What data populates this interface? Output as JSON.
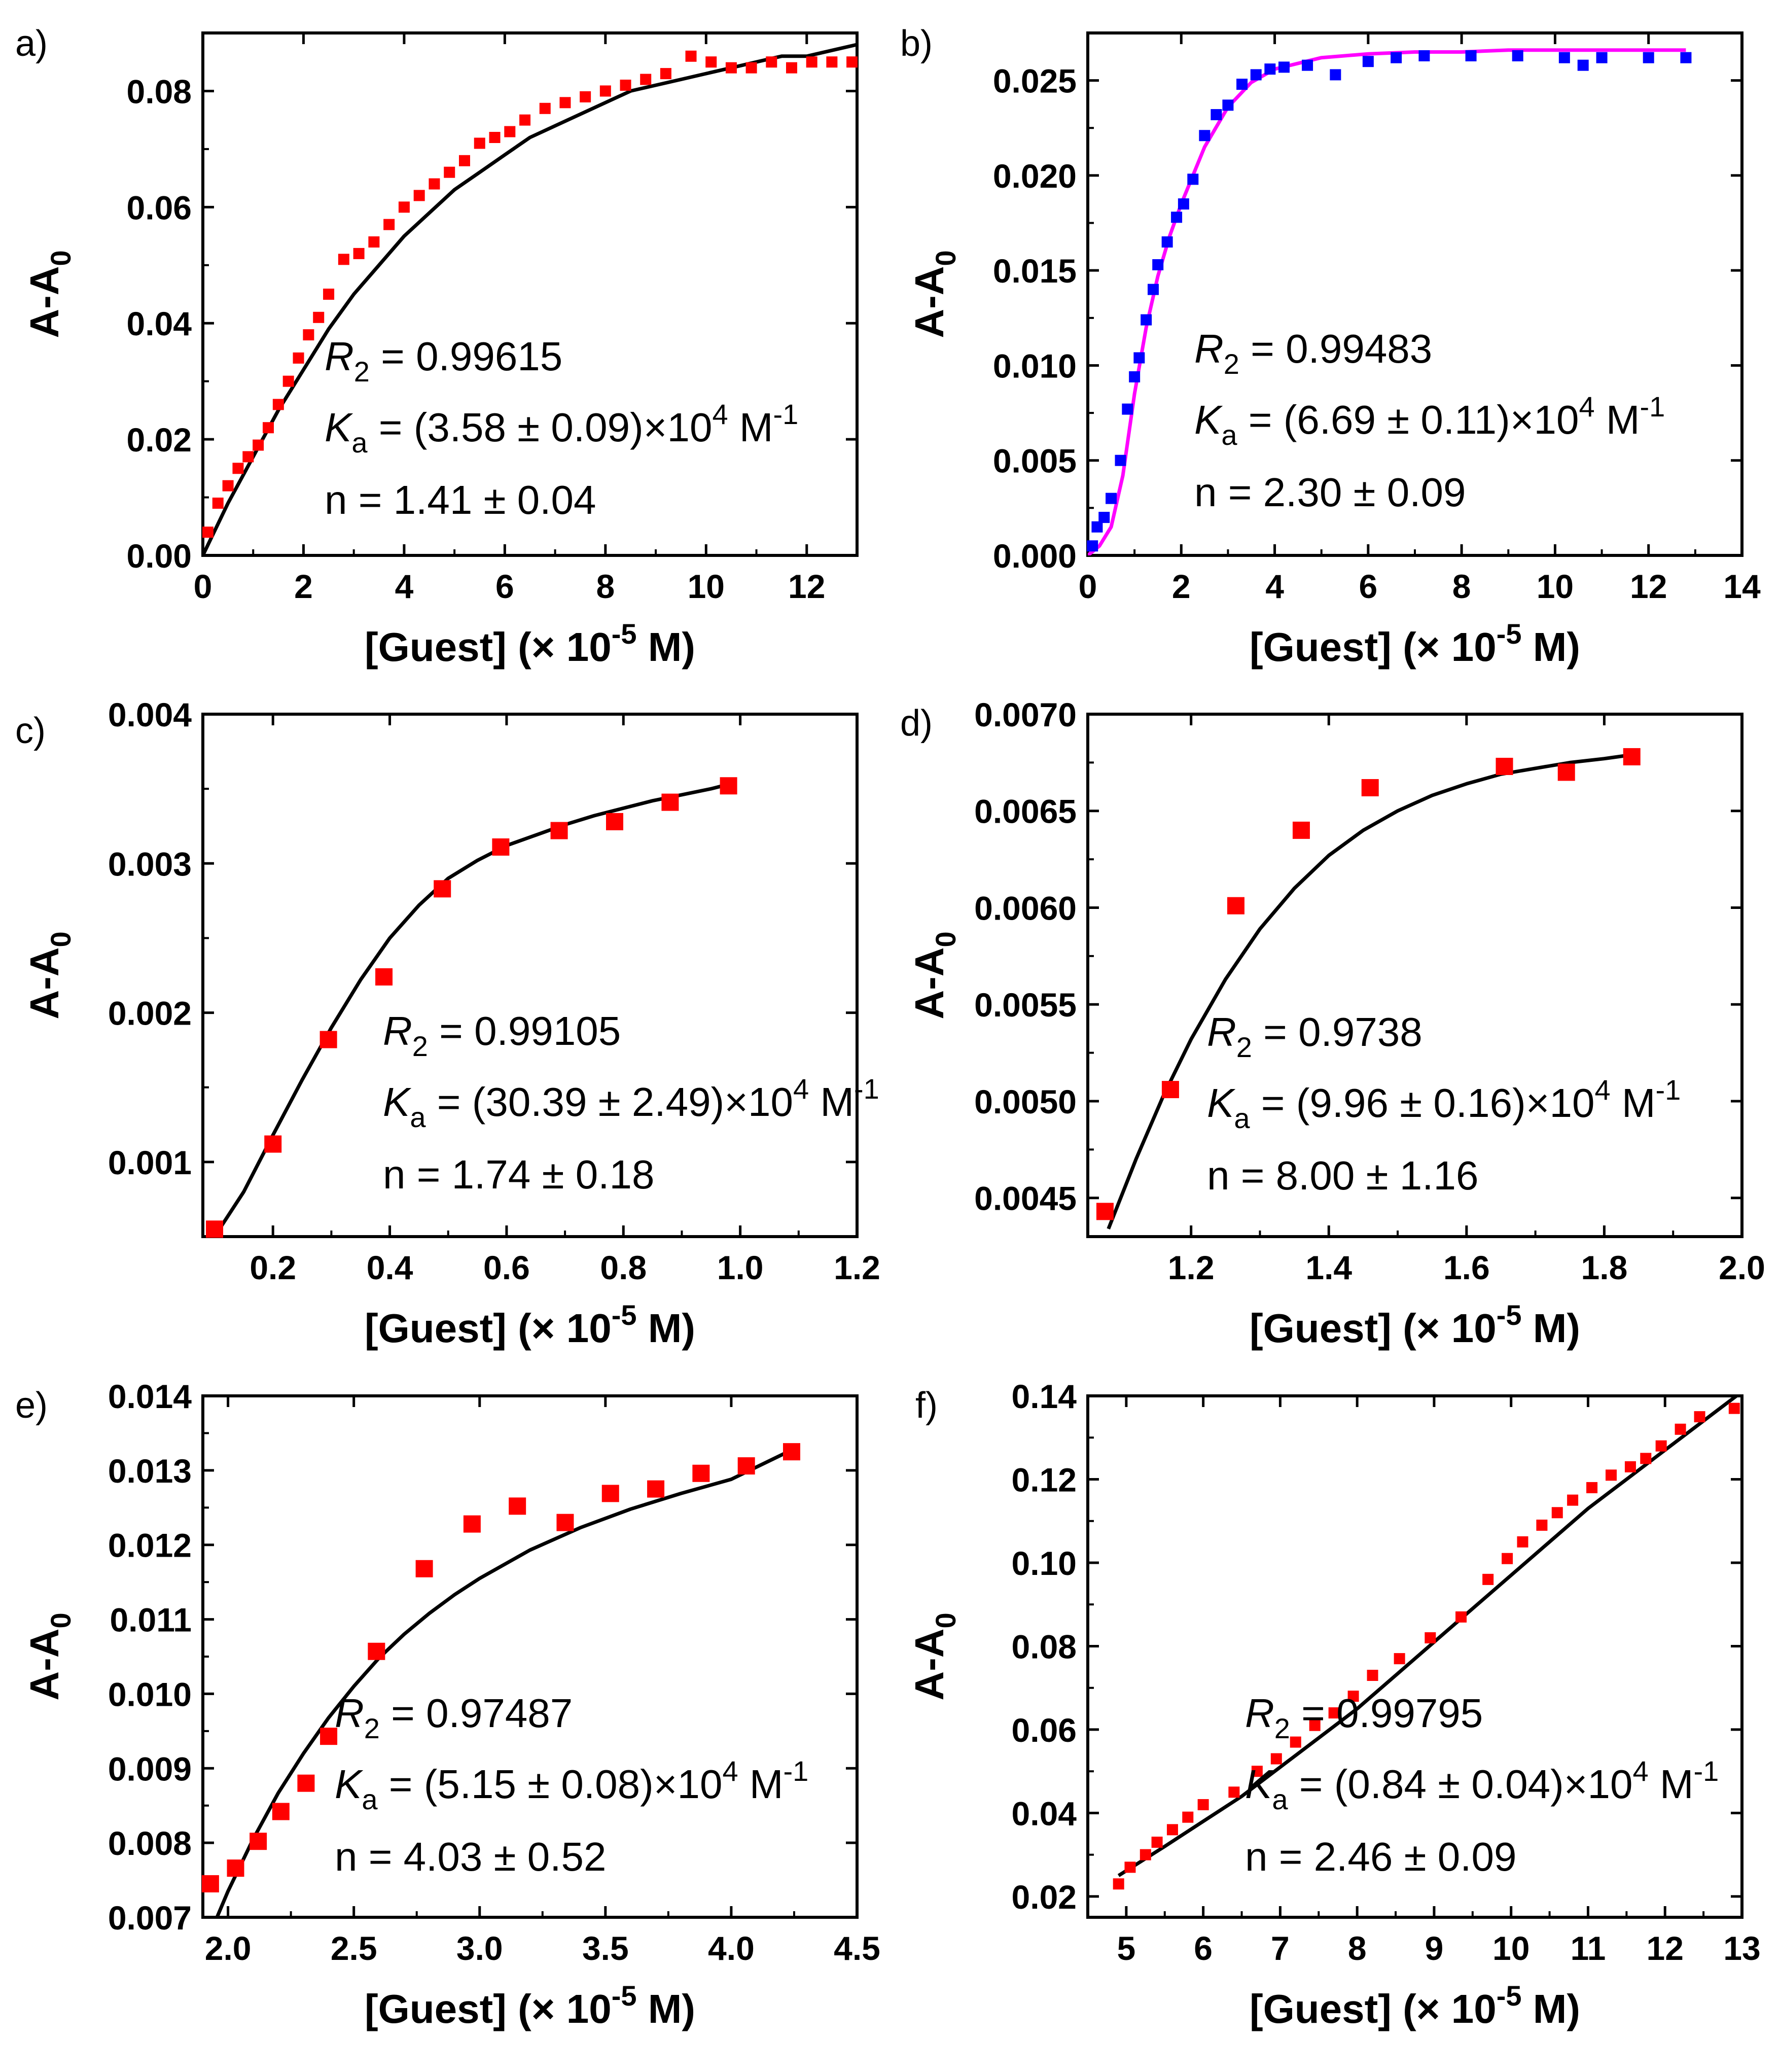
{
  "figure": {
    "background": "#ffffff",
    "frame_color": "#000000"
  },
  "chart_data": [
    {
      "id": "a",
      "panel_label": "a)",
      "type": "scatter",
      "xlabel": "[Guest] (× 10",
      "x_exp": "-5",
      "xlabel_tail": " M)",
      "ylabel": "A-A",
      "ylabel_sub": "0",
      "xlim": [
        0,
        13
      ],
      "ylim": [
        0,
        0.09
      ],
      "xticks": [
        0,
        2,
        4,
        6,
        8,
        10,
        12
      ],
      "xtick_labels": [
        "0",
        "2",
        "4",
        "6",
        "8",
        "10",
        "12"
      ],
      "yticks": [
        0,
        0.02,
        0.04,
        0.06,
        0.08
      ],
      "ytick_labels": [
        "0.00",
        "0.02",
        "0.04",
        "0.06",
        "0.08"
      ],
      "marker_color": "#ff0000",
      "fit_color": "#000000",
      "series": [
        {
          "name": "data",
          "x": [
            0.1,
            0.3,
            0.5,
            0.7,
            0.9,
            1.1,
            1.3,
            1.5,
            1.7,
            1.9,
            2.1,
            2.3,
            2.5,
            2.8,
            3.1,
            3.4,
            3.7,
            4.0,
            4.3,
            4.6,
            4.9,
            5.2,
            5.5,
            5.8,
            6.1,
            6.4,
            6.8,
            7.2,
            7.6,
            8.0,
            8.4,
            8.8,
            9.2,
            9.7,
            10.1,
            10.5,
            10.9,
            11.3,
            11.7,
            12.1,
            12.5,
            12.9
          ],
          "y": [
            0.004,
            0.009,
            0.012,
            0.015,
            0.017,
            0.019,
            0.022,
            0.026,
            0.03,
            0.034,
            0.038,
            0.041,
            0.045,
            0.051,
            0.052,
            0.054,
            0.057,
            0.06,
            0.062,
            0.064,
            0.066,
            0.068,
            0.071,
            0.072,
            0.073,
            0.075,
            0.077,
            0.078,
            0.079,
            0.08,
            0.081,
            0.082,
            0.083,
            0.086,
            0.085,
            0.084,
            0.084,
            0.085,
            0.084,
            0.085,
            0.085,
            0.085
          ]
        },
        {
          "name": "fit",
          "x": [
            0,
            0.5,
            1,
            1.5,
            2,
            2.5,
            3,
            3.5,
            4,
            4.5,
            5,
            5.5,
            6,
            6.5,
            7,
            7.5,
            8,
            8.5,
            9,
            9.5,
            10,
            10.5,
            11,
            11.5,
            12,
            12.5,
            13
          ],
          "y": [
            0,
            0.009,
            0.017,
            0.025,
            0.032,
            0.039,
            0.045,
            0.05,
            0.055,
            0.059,
            0.063,
            0.066,
            0.069,
            0.072,
            0.074,
            0.076,
            0.078,
            0.08,
            0.081,
            0.082,
            0.083,
            0.084,
            0.085,
            0.086,
            0.086,
            0.087,
            0.088
          ]
        }
      ],
      "stats": {
        "r2_label": "R",
        "r2_sub": "2",
        "r2_value": " = 0.99615",
        "ka_label": "K",
        "ka_sub": "a",
        "ka_value": " = (3.58 ± 0.09)×10",
        "ka_exp": "4",
        "ka_unit": " M",
        "ka_unit_exp": "-1",
        "n_text": "n = 1.41 ± 0.04"
      }
    },
    {
      "id": "b",
      "panel_label": "b)",
      "type": "scatter",
      "xlabel": "[Guest] (× 10",
      "x_exp": "-5",
      "xlabel_tail": " M)",
      "ylabel": "A-A",
      "ylabel_sub": "0",
      "xlim": [
        0,
        14
      ],
      "ylim": [
        0,
        0.0275
      ],
      "xticks": [
        0,
        2,
        4,
        6,
        8,
        10,
        12,
        14
      ],
      "xtick_labels": [
        "0",
        "2",
        "4",
        "6",
        "8",
        "10",
        "12",
        "14"
      ],
      "yticks": [
        0,
        0.005,
        0.01,
        0.015,
        0.02,
        0.025
      ],
      "ytick_labels": [
        "0.000",
        "0.005",
        "0.010",
        "0.015",
        "0.020",
        "0.025"
      ],
      "marker_color": "#0000ff",
      "fit_color": "#ff00ff",
      "series": [
        {
          "name": "data",
          "x": [
            0.1,
            0.2,
            0.35,
            0.5,
            0.7,
            0.85,
            1.0,
            1.1,
            1.25,
            1.4,
            1.5,
            1.7,
            1.9,
            2.05,
            2.25,
            2.5,
            2.75,
            3.0,
            3.3,
            3.6,
            3.9,
            4.2,
            4.7,
            5.3,
            6.0,
            6.6,
            7.2,
            8.2,
            9.2,
            10.2,
            10.6,
            11.0,
            12.0,
            12.8
          ],
          "y": [
            0.0005,
            0.0015,
            0.002,
            0.003,
            0.005,
            0.0077,
            0.0094,
            0.0104,
            0.0124,
            0.014,
            0.0153,
            0.0165,
            0.0178,
            0.0185,
            0.0198,
            0.0221,
            0.0232,
            0.0237,
            0.0248,
            0.0253,
            0.0256,
            0.0257,
            0.0258,
            0.0253,
            0.026,
            0.0262,
            0.0263,
            0.0263,
            0.0263,
            0.0262,
            0.0258,
            0.0262,
            0.0262,
            0.0262
          ]
        },
        {
          "name": "fit",
          "x": [
            0,
            0.25,
            0.5,
            0.75,
            1,
            1.25,
            1.5,
            1.75,
            2,
            2.5,
            3,
            3.5,
            4,
            5,
            6,
            7,
            8,
            9,
            10,
            11,
            12,
            12.8
          ],
          "y": [
            0,
            0.0005,
            0.0015,
            0.0042,
            0.0085,
            0.012,
            0.0147,
            0.0168,
            0.0185,
            0.0215,
            0.0236,
            0.0249,
            0.0256,
            0.0262,
            0.0264,
            0.0265,
            0.0265,
            0.0266,
            0.0266,
            0.0266,
            0.0266,
            0.0266
          ]
        }
      ],
      "stats": {
        "r2_label": "R",
        "r2_sub": "2",
        "r2_value": " = 0.99483",
        "ka_label": "K",
        "ka_sub": "a",
        "ka_value": " = (6.69 ± 0.11)×10",
        "ka_exp": "4",
        "ka_unit": " M",
        "ka_unit_exp": "-1",
        "n_text": "n = 2.30 ± 0.09"
      }
    },
    {
      "id": "c",
      "panel_label": "c)",
      "type": "scatter",
      "xlabel": "[Guest] (× 10",
      "x_exp": "-5",
      "xlabel_tail": " M)",
      "ylabel": "A-A",
      "ylabel_sub": "0",
      "xlim": [
        0.08,
        1.2
      ],
      "ylim": [
        0.0005,
        0.004
      ],
      "xticks": [
        0.2,
        0.4,
        0.6,
        0.8,
        1.0,
        1.2
      ],
      "xtick_labels": [
        "0.2",
        "0.4",
        "0.6",
        "0.8",
        "1.0",
        "1.2"
      ],
      "yticks": [
        0.001,
        0.002,
        0.003,
        0.004
      ],
      "ytick_labels": [
        "0.001",
        "0.002",
        "0.003",
        "0.004"
      ],
      "marker_color": "#ff0000",
      "fit_color": "#000000",
      "series": [
        {
          "name": "data",
          "x": [
            0.1,
            0.2,
            0.295,
            0.39,
            0.49,
            0.59,
            0.69,
            0.785,
            0.88,
            0.98
          ],
          "y": [
            0.00055,
            0.00112,
            0.00182,
            0.00224,
            0.00283,
            0.00311,
            0.00322,
            0.00328,
            0.00341,
            0.00352
          ]
        },
        {
          "name": "fit",
          "x": [
            0.1,
            0.15,
            0.2,
            0.25,
            0.3,
            0.35,
            0.4,
            0.45,
            0.5,
            0.55,
            0.6,
            0.65,
            0.7,
            0.75,
            0.8,
            0.85,
            0.9,
            0.95,
            0.98
          ],
          "y": [
            0.0005,
            0.0008,
            0.00118,
            0.00155,
            0.0019,
            0.00222,
            0.0025,
            0.00272,
            0.0029,
            0.00302,
            0.00312,
            0.00319,
            0.00326,
            0.00332,
            0.00337,
            0.00342,
            0.00346,
            0.0035,
            0.00353
          ]
        }
      ],
      "stats": {
        "r2_label": "R",
        "r2_sub": "2",
        "r2_value": " = 0.99105",
        "ka_label": "K",
        "ka_sub": "a",
        "ka_value": " = (30.39 ± 2.49)×10",
        "ka_exp": "4",
        "ka_unit": " M",
        "ka_unit_exp": "-1",
        "n_text": "n = 1.74 ± 0.18"
      }
    },
    {
      "id": "d",
      "panel_label": "d)",
      "type": "scatter",
      "xlabel": "[Guest] (× 10",
      "x_exp": "-5",
      "xlabel_tail": " M)",
      "ylabel": "A-A",
      "ylabel_sub": "0",
      "xlim": [
        1.05,
        2.0
      ],
      "ylim": [
        0.0043,
        0.007
      ],
      "xticks": [
        1.2,
        1.4,
        1.6,
        1.8,
        2.0
      ],
      "xtick_labels": [
        "1.2",
        "1.4",
        "1.6",
        "1.8",
        "2.0"
      ],
      "yticks": [
        0.0045,
        0.005,
        0.0055,
        0.006,
        0.0065,
        0.007
      ],
      "ytick_labels": [
        "0.0045",
        "0.0050",
        "0.0055",
        "0.0060",
        "0.0065",
        "0.0070"
      ],
      "marker_color": "#ff0000",
      "fit_color": "#000000",
      "series": [
        {
          "name": "data",
          "x": [
            1.075,
            1.17,
            1.265,
            1.36,
            1.46,
            1.655,
            1.745,
            1.84
          ],
          "y": [
            0.00443,
            0.00506,
            0.00601,
            0.0064,
            0.00662,
            0.00673,
            0.0067,
            0.00678
          ]
        },
        {
          "name": "fit",
          "x": [
            1.08,
            1.12,
            1.16,
            1.2,
            1.25,
            1.3,
            1.35,
            1.4,
            1.45,
            1.5,
            1.55,
            1.6,
            1.65,
            1.7,
            1.75,
            1.8,
            1.84
          ],
          "y": [
            0.00434,
            0.0047,
            0.00503,
            0.00532,
            0.00563,
            0.00589,
            0.0061,
            0.00627,
            0.0064,
            0.0065,
            0.00658,
            0.00664,
            0.00669,
            0.00672,
            0.00675,
            0.00677,
            0.00679
          ]
        }
      ],
      "stats": {
        "r2_label": "R",
        "r2_sub": "2",
        "r2_value": " = 0.9738",
        "ka_label": "K",
        "ka_sub": "a",
        "ka_value": " = (9.96 ± 0.16)×10",
        "ka_exp": "4",
        "ka_unit": " M",
        "ka_unit_exp": "-1",
        "n_text": "n = 8.00 ± 1.16"
      }
    },
    {
      "id": "e",
      "panel_label": "e)",
      "type": "scatter",
      "xlabel": "[Guest] (× 10",
      "x_exp": "-5",
      "xlabel_tail": " M)",
      "ylabel": "A-A",
      "ylabel_sub": "0",
      "xlim": [
        1.9,
        4.5
      ],
      "ylim": [
        0.007,
        0.014
      ],
      "xticks": [
        2.0,
        2.5,
        3.0,
        3.5,
        4.0,
        4.5
      ],
      "xtick_labels": [
        "2.0",
        "2.5",
        "3.0",
        "3.5",
        "4.0",
        "4.5"
      ],
      "yticks": [
        0.007,
        0.008,
        0.009,
        0.01,
        0.011,
        0.012,
        0.013,
        0.014
      ],
      "ytick_labels": [
        "0.007",
        "0.008",
        "0.009",
        "0.010",
        "0.011",
        "0.012",
        "0.013",
        "0.014"
      ],
      "marker_color": "#ff0000",
      "fit_color": "#000000",
      "series": [
        {
          "name": "data",
          "x": [
            1.93,
            2.03,
            2.12,
            2.21,
            2.31,
            2.4,
            2.59,
            2.78,
            2.97,
            3.15,
            3.34,
            3.52,
            3.7,
            3.88,
            4.06,
            4.24
          ],
          "y": [
            0.00745,
            0.00766,
            0.00802,
            0.00842,
            0.0088,
            0.00943,
            0.01057,
            0.01168,
            0.01228,
            0.01252,
            0.0123,
            0.01269,
            0.01275,
            0.01296,
            0.01306,
            0.01325
          ]
        },
        {
          "name": "fit",
          "x": [
            1.95,
            2.0,
            2.1,
            2.2,
            2.3,
            2.4,
            2.5,
            2.6,
            2.7,
            2.8,
            2.9,
            3.0,
            3.2,
            3.4,
            3.6,
            3.8,
            4.0,
            4.25
          ],
          "y": [
            0.00695,
            0.00735,
            0.00805,
            0.00867,
            0.0092,
            0.00968,
            0.0101,
            0.01048,
            0.0108,
            0.01108,
            0.01133,
            0.01155,
            0.01193,
            0.01223,
            0.01248,
            0.01269,
            0.01288,
            0.01329
          ]
        }
      ],
      "stats": {
        "r2_label": "R",
        "r2_sub": "2",
        "r2_value": " = 0.97487",
        "ka_label": "K",
        "ka_sub": "a",
        "ka_value": " = (5.15 ± 0.08)×10",
        "ka_exp": "4",
        "ka_unit": " M",
        "ka_unit_exp": "-1",
        "n_text": "n = 4.03 ± 0.52"
      }
    },
    {
      "id": "f",
      "panel_label": "f)",
      "type": "scatter",
      "xlabel": "[Guest] (× 10",
      "x_exp": "-5",
      "xlabel_tail": " M)",
      "ylabel": "A-A",
      "ylabel_sub": "0",
      "xlim": [
        4.5,
        13
      ],
      "ylim": [
        0.015,
        0.14
      ],
      "xticks": [
        5,
        6,
        7,
        8,
        9,
        10,
        11,
        12,
        13
      ],
      "xtick_labels": [
        "5",
        "6",
        "7",
        "8",
        "9",
        "10",
        "11",
        "12",
        "13"
      ],
      "yticks": [
        0.02,
        0.04,
        0.06,
        0.08,
        0.1,
        0.12,
        0.14
      ],
      "ytick_labels": [
        "0.02",
        "0.04",
        "0.06",
        "0.08",
        "0.10",
        "0.12",
        "0.14"
      ],
      "marker_color": "#ff0000",
      "fit_color": "#000000",
      "series": [
        {
          "name": "data",
          "x": [
            4.9,
            5.05,
            5.25,
            5.4,
            5.6,
            5.8,
            6.0,
            6.4,
            6.7,
            6.95,
            7.2,
            7.45,
            7.7,
            7.95,
            8.2,
            8.55,
            8.95,
            9.35,
            9.7,
            9.95,
            10.15,
            10.4,
            10.6,
            10.8,
            11.05,
            11.3,
            11.55,
            11.75,
            11.95,
            12.2,
            12.45,
            12.9
          ],
          "y": [
            0.023,
            0.027,
            0.03,
            0.033,
            0.036,
            0.039,
            0.042,
            0.045,
            0.05,
            0.053,
            0.057,
            0.061,
            0.064,
            0.068,
            0.073,
            0.077,
            0.082,
            0.087,
            0.096,
            0.101,
            0.105,
            0.109,
            0.112,
            0.115,
            0.118,
            0.121,
            0.123,
            0.125,
            0.128,
            0.132,
            0.135,
            0.137
          ]
        },
        {
          "name": "fit",
          "x": [
            4.9,
            5.5,
            6,
            6.5,
            7,
            7.5,
            8,
            8.5,
            9,
            9.5,
            10,
            10.5,
            11,
            11.5,
            12,
            12.5,
            13
          ],
          "y": [
            0.025,
            0.032,
            0.038,
            0.044,
            0.051,
            0.058,
            0.065,
            0.073,
            0.081,
            0.089,
            0.097,
            0.105,
            0.113,
            0.12,
            0.127,
            0.134,
            0.141
          ]
        }
      ],
      "stats": {
        "r2_label": "R",
        "r2_sub": "2",
        "r2_value": " = 0.99795",
        "ka_label": "K",
        "ka_sub": "a",
        "ka_value": " = (0.84 ± 0.04)×10",
        "ka_exp": "4",
        "ka_unit": " M",
        "ka_unit_exp": "-1",
        "n_text": "n = 2.46 ± 0.09"
      }
    }
  ]
}
